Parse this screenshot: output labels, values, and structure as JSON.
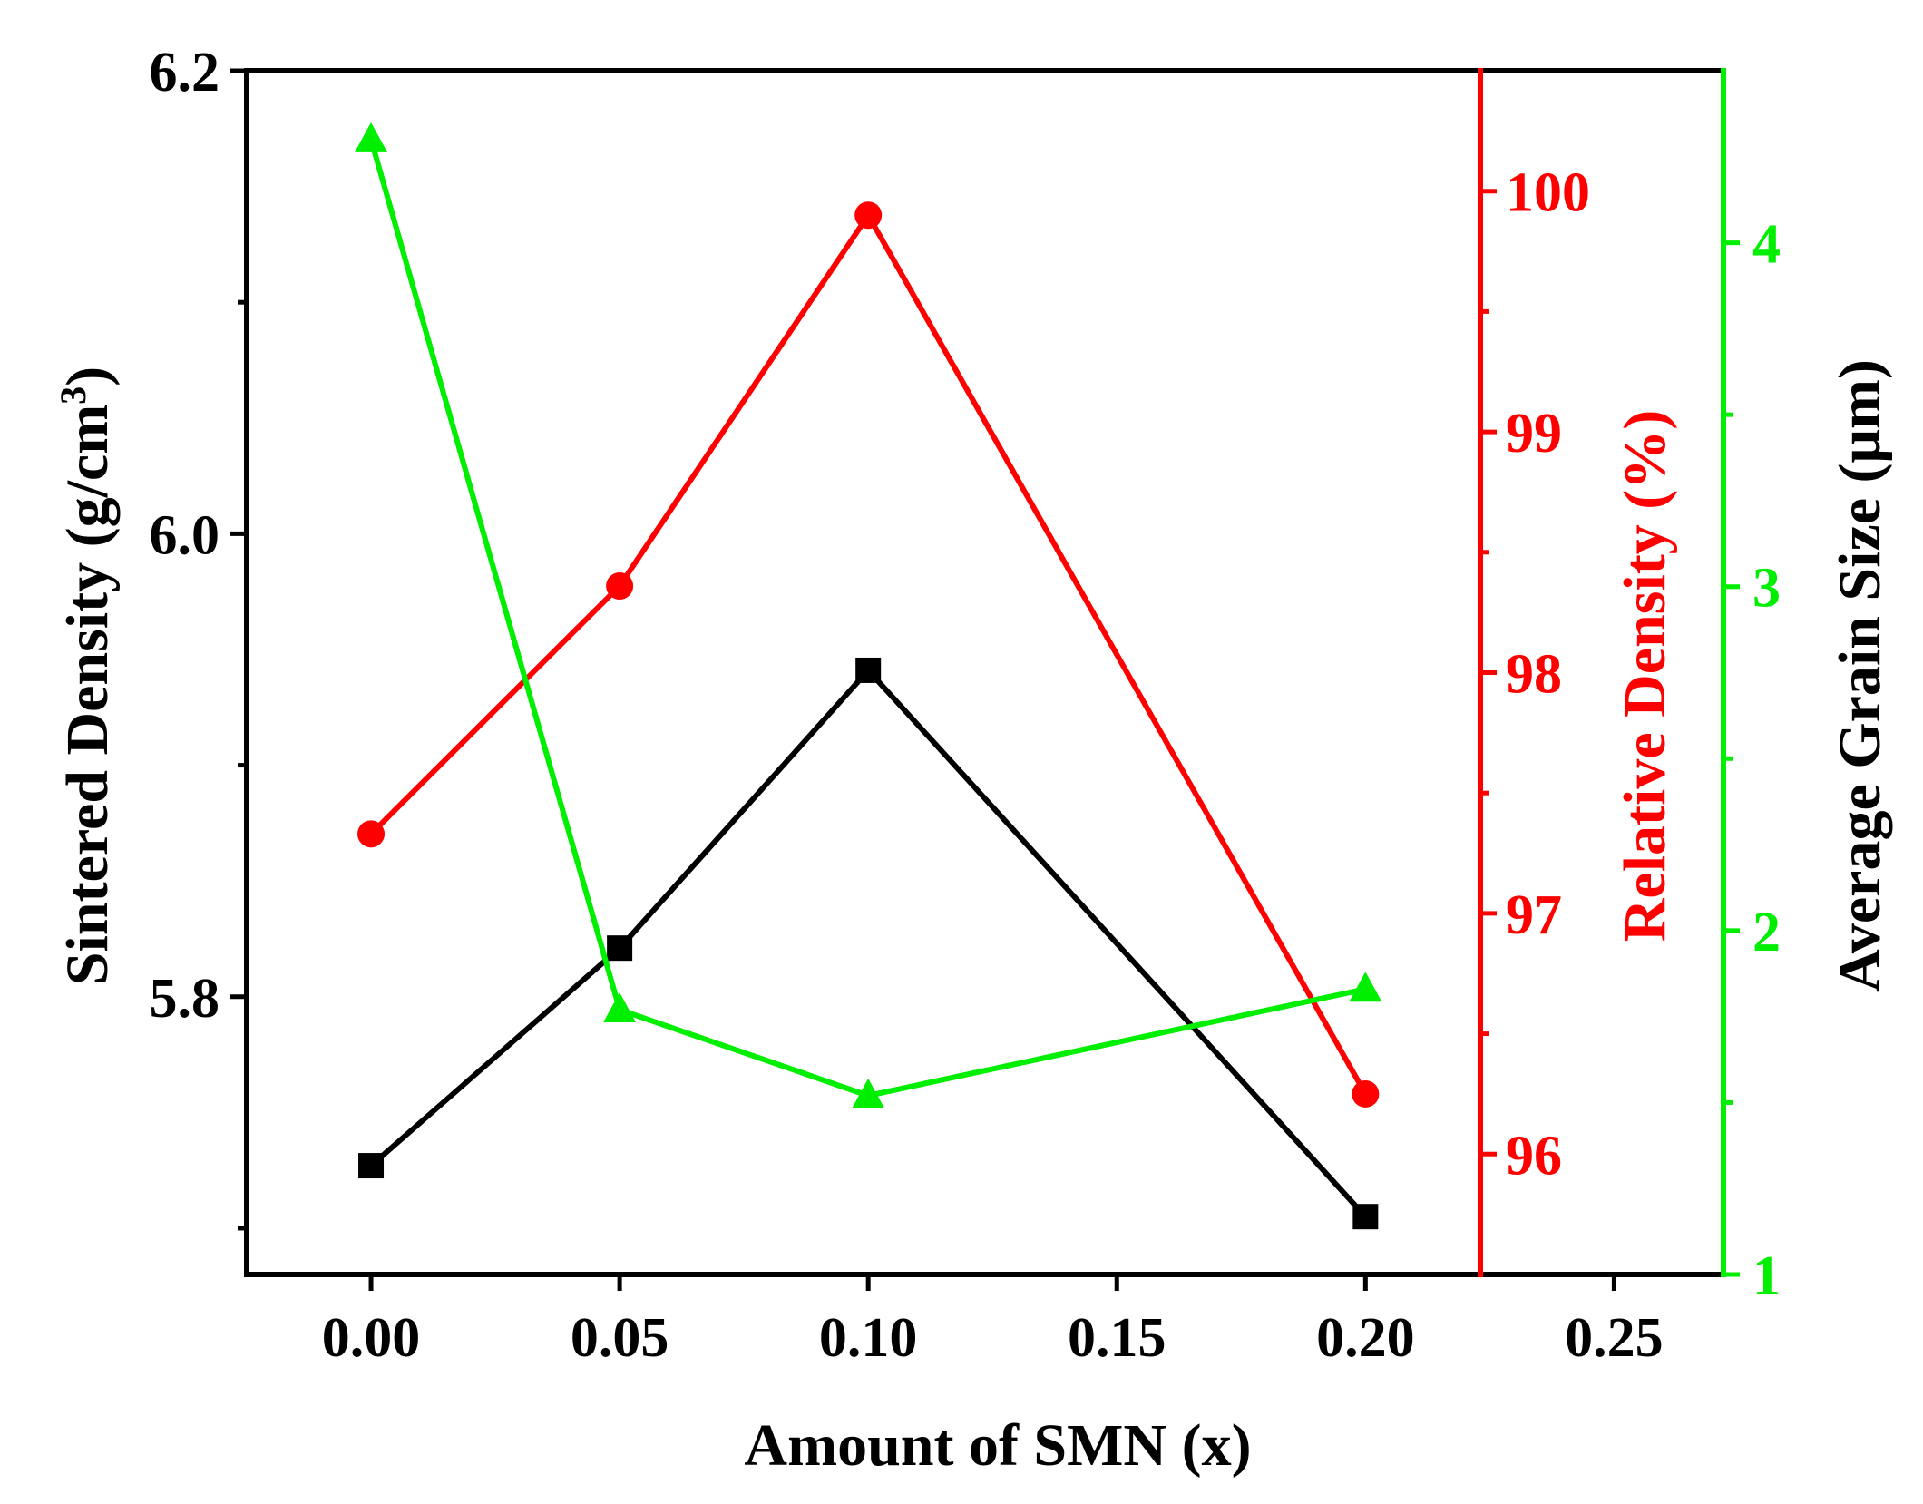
{
  "chart_data": {
    "type": "line",
    "title": "",
    "xlabel": "Amount of SMN (x)",
    "ylabel": "Sintered Density (g/cm",
    "ylabel_sup": "3",
    "ylabel_close": ")",
    "y2label": "Relative Density (%)",
    "y3label": "Average Grain Size (μm)",
    "xlim": [
      -0.025,
      0.272
    ],
    "ylim": [
      5.68,
      6.2
    ],
    "y2lim": [
      95.5,
      100.5
    ],
    "y3lim": [
      1,
      4.5
    ],
    "x_ticks": [
      0.0,
      0.05,
      0.1,
      0.15,
      0.2,
      0.25
    ],
    "x_tick_labels": [
      "0.00",
      "0.05",
      "0.10",
      "0.15",
      "0.20",
      "0.25"
    ],
    "y_ticks": [
      5.8,
      6.0,
      6.2
    ],
    "y_tick_labels": [
      "5.8",
      "6.0",
      "6.2"
    ],
    "y_minor_ticks": [
      5.7,
      5.9,
      6.1
    ],
    "y2_ticks": [
      96,
      97,
      98,
      99,
      100
    ],
    "y2_tick_labels": [
      "96",
      "97",
      "98",
      "99",
      "100"
    ],
    "y2_minor_ticks": [
      96.5,
      97.5,
      98.5,
      99.5
    ],
    "y3_ticks": [
      1,
      2,
      3,
      4
    ],
    "y3_tick_labels": [
      "1",
      "2",
      "3",
      "4"
    ],
    "y3_minor_ticks": [
      1.5,
      2.5,
      3.5
    ],
    "grid": false,
    "series": [
      {
        "name": "Sintered Density",
        "axis": "y",
        "color": "#000000",
        "marker": "square",
        "x": [
          0.0,
          0.05,
          0.1,
          0.2
        ],
        "y": [
          5.727,
          5.821,
          5.941,
          5.705
        ]
      },
      {
        "name": "Relative Density",
        "axis": "y2",
        "color": "#ff0000",
        "marker": "circle",
        "x": [
          0.0,
          0.05,
          0.1,
          0.2
        ],
        "y": [
          97.33,
          98.36,
          99.9,
          96.25
        ]
      },
      {
        "name": "Average Grain Size",
        "axis": "y3",
        "color": "#00ee00",
        "marker": "triangle",
        "x": [
          0.0,
          0.05,
          0.1,
          0.2
        ],
        "y": [
          4.3,
          1.77,
          1.52,
          1.83
        ]
      }
    ]
  }
}
